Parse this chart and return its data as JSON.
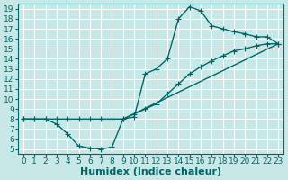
{
  "xlabel": "Humidex (Indice chaleur)",
  "bg_color": "#c8e8e8",
  "line_color": "#006666",
  "grid_color": "#ffffff",
  "xlim": [
    -0.5,
    23.5
  ],
  "ylim": [
    4.5,
    19.5
  ],
  "xticks": [
    0,
    1,
    2,
    3,
    4,
    5,
    6,
    7,
    8,
    9,
    10,
    11,
    12,
    13,
    14,
    15,
    16,
    17,
    18,
    19,
    20,
    21,
    22,
    23
  ],
  "yticks": [
    5,
    6,
    7,
    8,
    9,
    10,
    11,
    12,
    13,
    14,
    15,
    16,
    17,
    18,
    19
  ],
  "line1_x": [
    0,
    1,
    2,
    3,
    4,
    5,
    6,
    7,
    8,
    9,
    10,
    11,
    12,
    13,
    14,
    15,
    16,
    17,
    18,
    19,
    20,
    21,
    22,
    23
  ],
  "line1_y": [
    8,
    8,
    8,
    7.5,
    6.5,
    5.3,
    5.1,
    5.0,
    5.2,
    8.0,
    8.2,
    12.5,
    13.0,
    14.0,
    18.0,
    19.2,
    18.8,
    17.3,
    17.0,
    16.7,
    16.5,
    16.2,
    16.2,
    15.5
  ],
  "line2_x": [
    0,
    1,
    2,
    3,
    4,
    5,
    6,
    7,
    8,
    9,
    10,
    11,
    12,
    13,
    14,
    15,
    16,
    17,
    18,
    19,
    20,
    21,
    22,
    23
  ],
  "line2_y": [
    8.0,
    8.0,
    8.0,
    8.0,
    8.0,
    8.0,
    8.0,
    8.0,
    8.0,
    8.0,
    8.5,
    9.0,
    9.5,
    10.5,
    11.5,
    12.5,
    13.2,
    13.8,
    14.3,
    14.8,
    15.0,
    15.3,
    15.5,
    15.5
  ],
  "line3_x": [
    9,
    23
  ],
  "line3_y": [
    8.0,
    15.5
  ],
  "marker": "+",
  "markersize": 4,
  "linewidth": 1.0,
  "xlabel_fontsize": 8,
  "tick_fontsize": 6.5
}
